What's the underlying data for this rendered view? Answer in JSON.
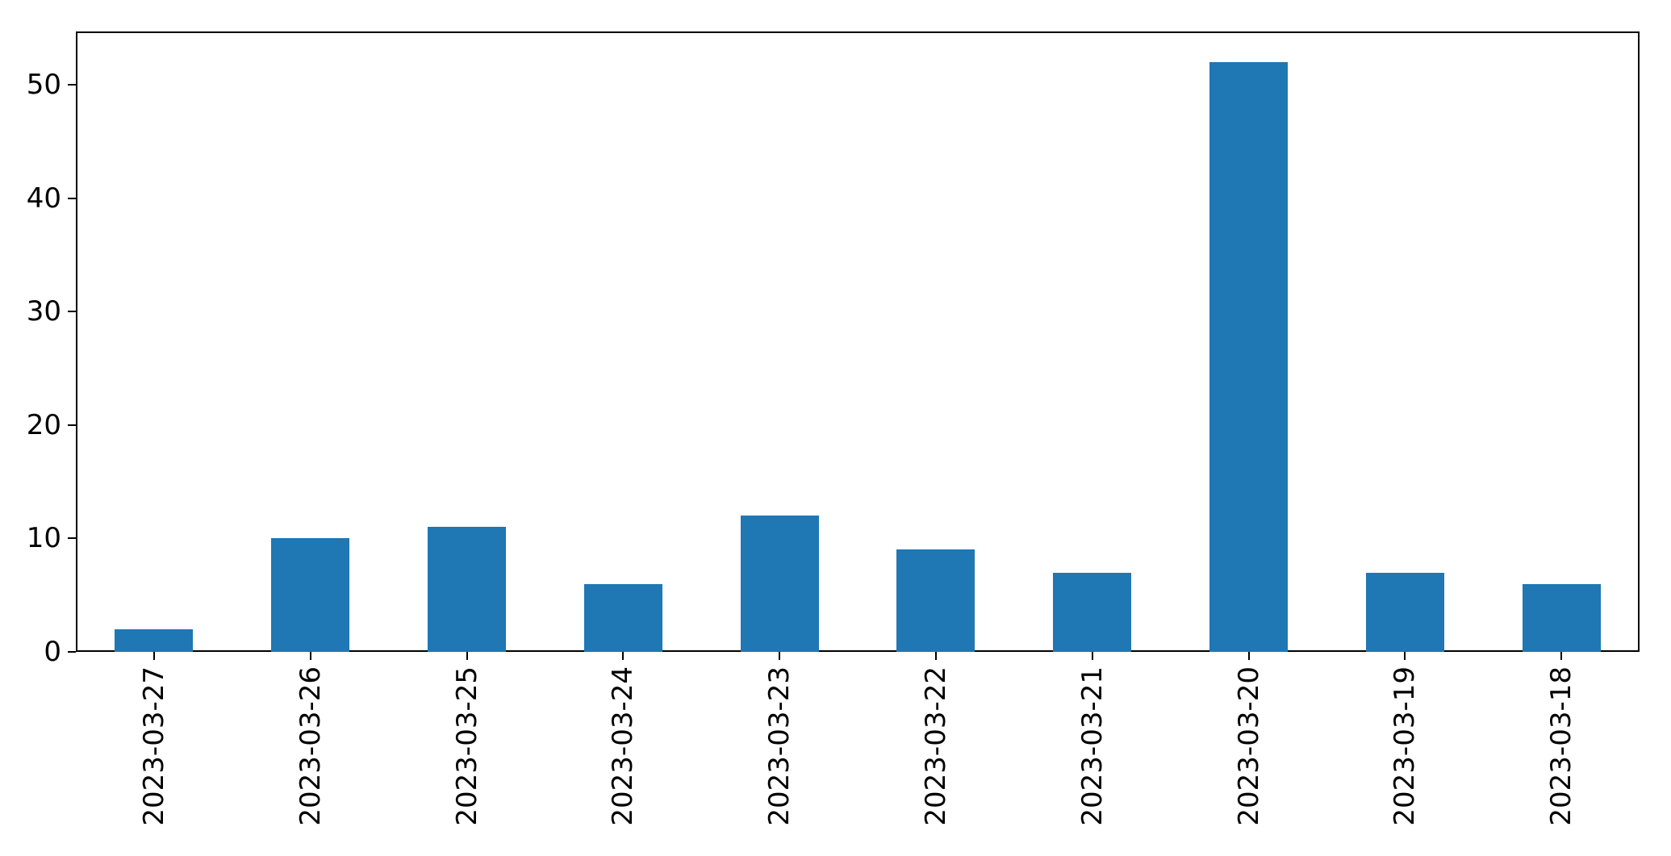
{
  "figure": {
    "background_color": "#ffffff",
    "spine_color": "#000000",
    "tick_color": "#000000"
  },
  "chart_data": {
    "type": "bar",
    "title": "",
    "xlabel": "",
    "ylabel": "",
    "categories": [
      "2023-03-27",
      "2023-03-26",
      "2023-03-25",
      "2023-03-24",
      "2023-03-23",
      "2023-03-22",
      "2023-03-21",
      "2023-03-20",
      "2023-03-19",
      "2023-03-18"
    ],
    "values": [
      2,
      10,
      11,
      6,
      12,
      9,
      7,
      52,
      7,
      6
    ],
    "ylim": [
      0,
      54.7
    ],
    "yticks": [
      0,
      10,
      20,
      30,
      40,
      50
    ],
    "bar_color": "#1f77b4",
    "bar_width_frac": 0.5,
    "grid": false,
    "legend": null,
    "xtick_rotation_degrees": 90
  }
}
